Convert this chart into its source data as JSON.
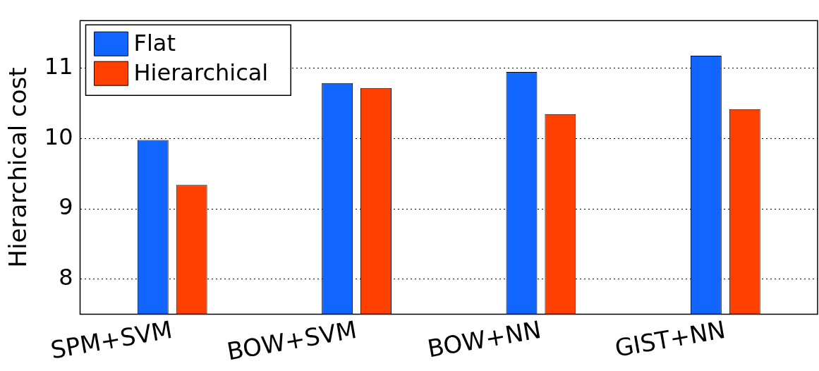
{
  "chart_data": {
    "type": "bar",
    "ylabel": "Hierarchical cost",
    "categories": [
      "SPM+SVM",
      "BOW+SVM",
      "BOW+NN",
      "GIST+NN"
    ],
    "series": [
      {
        "name": "Flat",
        "color": "#1166ff",
        "values": [
          9.98,
          10.79,
          10.95,
          11.18
        ]
      },
      {
        "name": "Hierarchical",
        "color": "#ff4000",
        "values": [
          9.34,
          10.72,
          10.35,
          10.42
        ]
      }
    ],
    "ylim": [
      7.5,
      11.68
    ],
    "yticks": [
      8,
      9,
      10,
      11
    ],
    "grid": "y",
    "legend": "top left"
  }
}
